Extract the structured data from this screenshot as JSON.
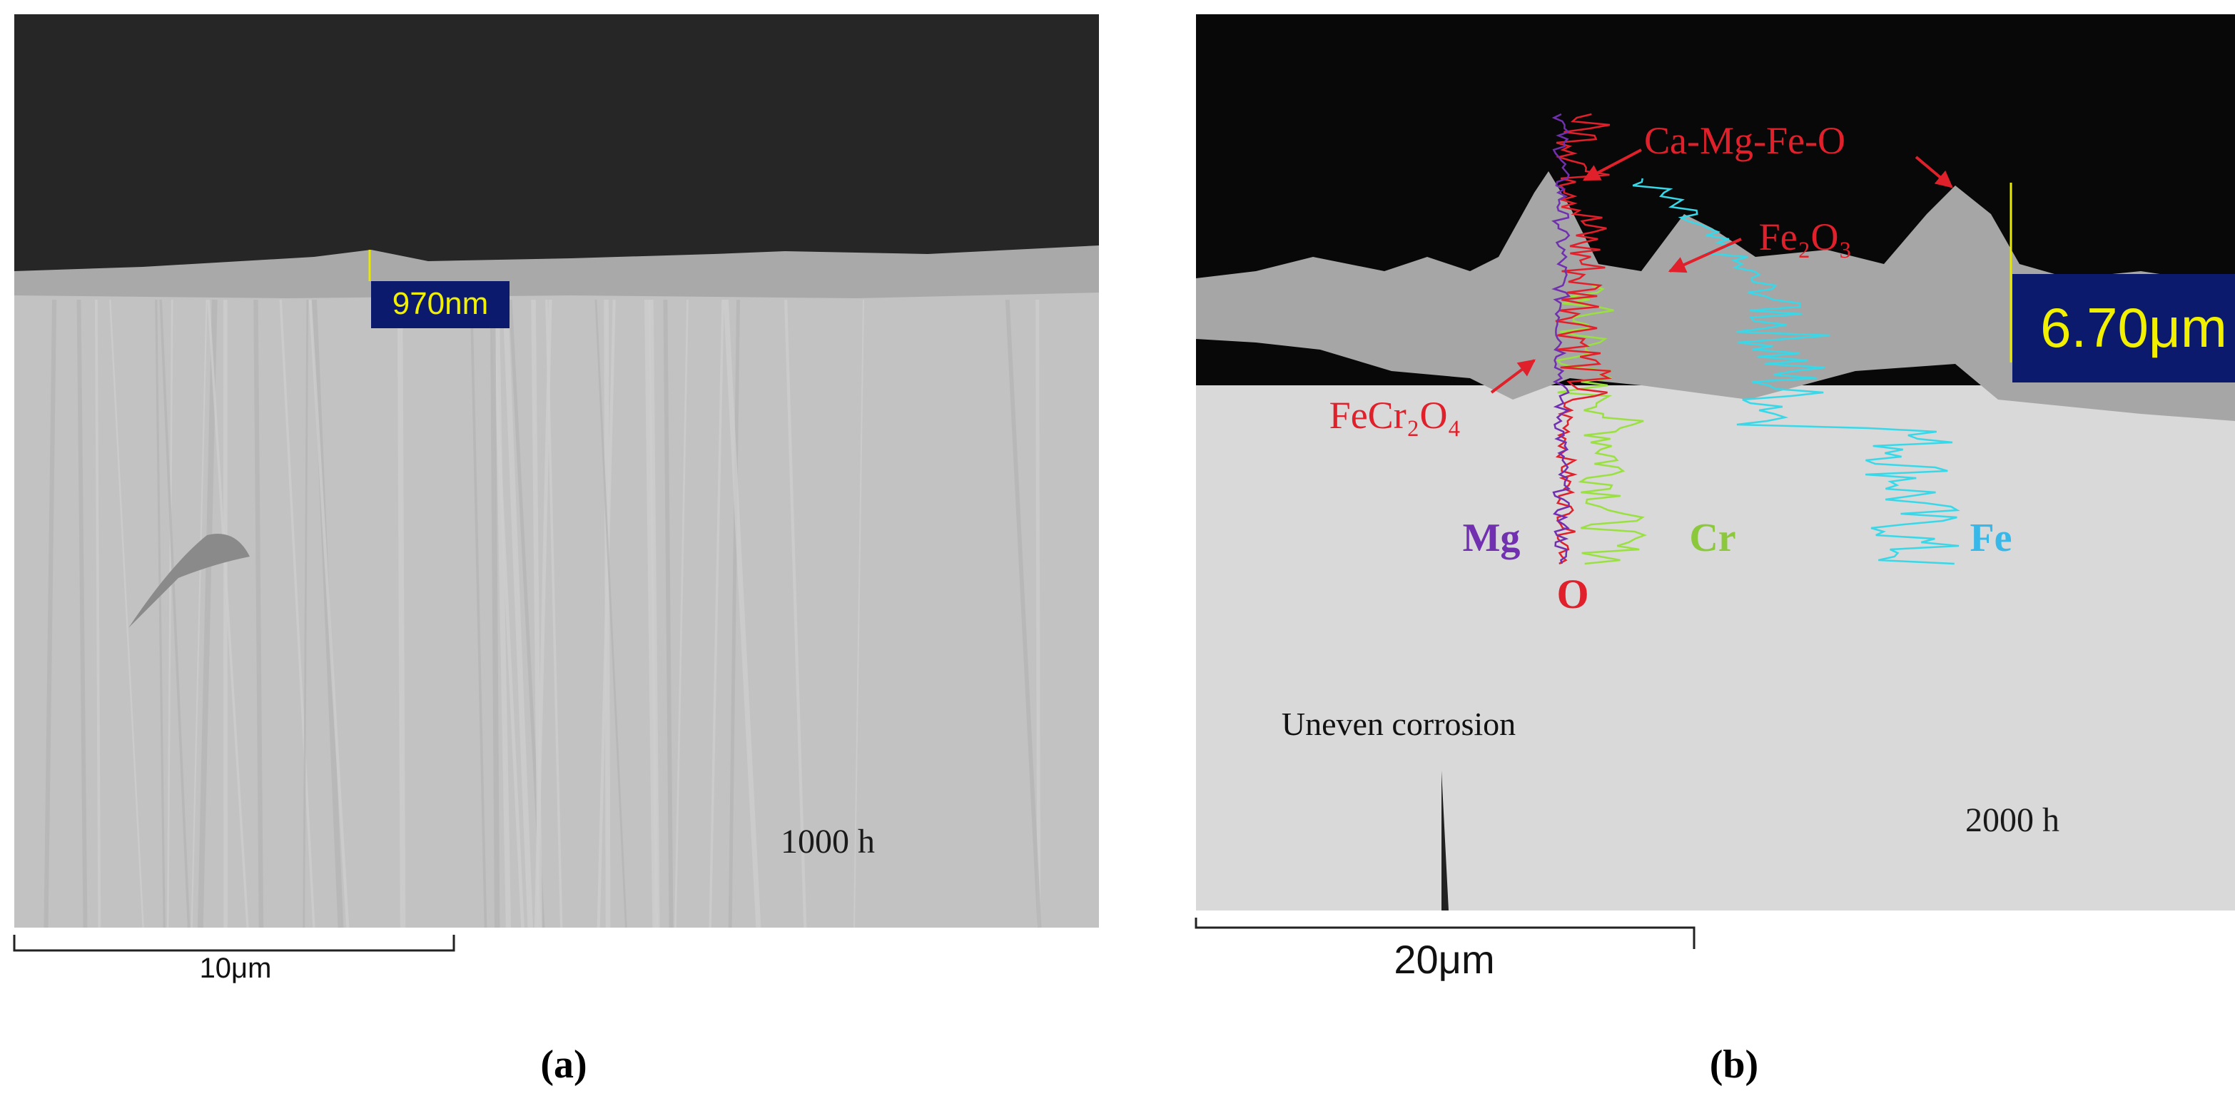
{
  "panels": [
    {
      "label": "(a)",
      "scale_bar": "10μm",
      "measurement": "970nm",
      "time": "1000 h"
    },
    {
      "label": "(b)",
      "scale_bar": "20μm",
      "measurement": "6.70μm",
      "time": "2000 h",
      "annotations": [
        "Ca-Mg-Fe-O",
        "Fe₂O₃",
        "FeCr₂O₄",
        "Uneven corrosion"
      ],
      "elements": [
        "Mg",
        "Cr",
        "Fe",
        "O"
      ]
    }
  ]
}
